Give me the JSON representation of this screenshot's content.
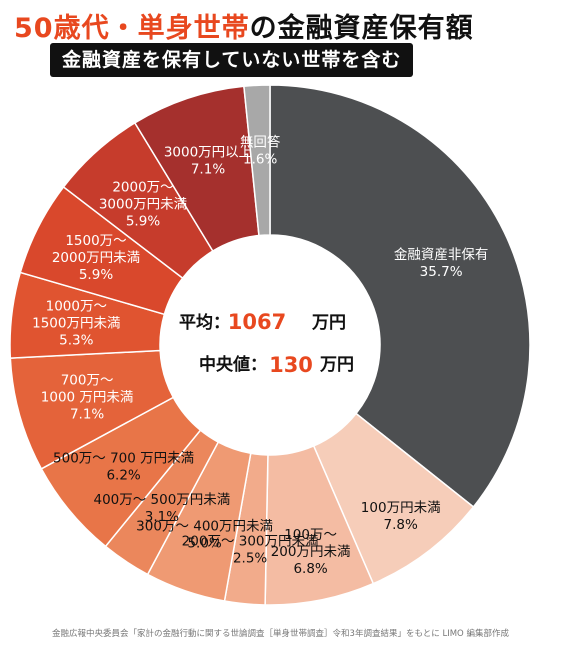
{
  "header": {
    "title_accent": "50歳代・単身世帯",
    "title_rest": "の金融資産保有額",
    "subtitle": "金融資産を保有していない世帯を含む"
  },
  "center": {
    "avg_label": "平均：",
    "avg_value": "1067",
    "avg_unit": "万円",
    "median_label": "中央値：",
    "median_value": "130",
    "median_unit": "万円"
  },
  "chart_data": {
    "type": "pie",
    "subtype": "donut",
    "categories": [
      "金融資産非保有",
      "100万円未満",
      "100万〜200万円未満",
      "200万〜300万円未満",
      "300万〜400万円未満",
      "400万〜500万円未満",
      "500万〜700万円未満",
      "700万〜1000万円未満",
      "1000万〜1500万円未満",
      "1500万〜2000万円未満",
      "2000万〜3000万円未満",
      "3000万円以上",
      "無回答"
    ],
    "values": [
      35.7,
      7.8,
      6.8,
      2.5,
      5.0,
      3.1,
      6.2,
      7.1,
      5.3,
      5.9,
      5.9,
      7.1,
      1.6
    ],
    "value_labels": [
      "35.7%",
      "7.8%",
      "6.8%",
      "2.5%",
      "5.0%",
      "3.1%",
      "6.2%",
      "7.1%",
      "5.3%",
      "5.9%",
      "5.9%",
      "7.1%",
      "1.6%"
    ],
    "label_lines": [
      [
        "金融資産非保有"
      ],
      [
        "100万円未満"
      ],
      [
        "100万〜",
        "200万円未満"
      ],
      [
        "200万〜 300万円未満"
      ],
      [
        "300万〜 400万円未満"
      ],
      [
        "400万〜 500万円未満"
      ],
      [
        "500万〜 700 万円未満"
      ],
      [
        "700万〜",
        "1000 万円未満"
      ],
      [
        "1000万〜",
        "1500万円未満"
      ],
      [
        "1500万〜",
        "2000万円未満"
      ],
      [
        "2000万〜",
        "3000万円未満"
      ],
      [
        "3000万円以上"
      ],
      [
        "無回答"
      ]
    ],
    "colors": [
      "#4d4f51",
      "#f6cdb9",
      "#f4bca3",
      "#f2ab8b",
      "#ef9a73",
      "#eb875c",
      "#e87548",
      "#e4633a",
      "#e05430",
      "#d9482c",
      "#c63c2c",
      "#a5302d",
      "#a8a8a8"
    ],
    "text_colors": [
      "#ffffff",
      "#111111",
      "#111111",
      "#111111",
      "#111111",
      "#111111",
      "#111111",
      "#ffffff",
      "#ffffff",
      "#ffffff",
      "#ffffff",
      "#ffffff",
      "#ffffff"
    ],
    "start_angle_deg": 0,
    "direction": "clockwise"
  },
  "source": "金融広報中央委員会「家計の金融行動に関する世論調査［単身世帯調査］令和3年調査結果」をもとに LIMO 編集部作成"
}
